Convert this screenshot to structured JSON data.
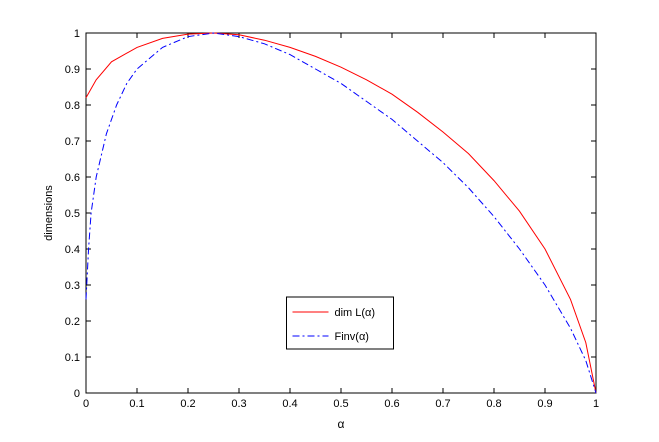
{
  "chart_data": {
    "type": "line",
    "x_label": "α",
    "y_label": "dimensions",
    "xlim": [
      0,
      1
    ],
    "ylim": [
      0,
      1
    ],
    "xticks": [
      0,
      0.1,
      0.2,
      0.3,
      0.4,
      0.5,
      0.6,
      0.7,
      0.8,
      0.9,
      1
    ],
    "yticks": [
      0,
      0.1,
      0.2,
      0.3,
      0.4,
      0.5,
      0.6,
      0.7,
      0.8,
      0.9,
      1
    ],
    "legend": "bottom-center",
    "series": [
      {
        "name": "dim L(α)",
        "color": "#ff0000",
        "dash": "solid",
        "x": [
          0,
          0.02,
          0.05,
          0.1,
          0.15,
          0.2,
          0.25,
          0.3,
          0.35,
          0.4,
          0.45,
          0.5,
          0.55,
          0.6,
          0.65,
          0.7,
          0.75,
          0.8,
          0.85,
          0.9,
          0.95,
          0.98,
          1
        ],
        "values": [
          0.82,
          0.87,
          0.92,
          0.96,
          0.985,
          0.997,
          1.0,
          0.995,
          0.98,
          0.96,
          0.935,
          0.905,
          0.87,
          0.83,
          0.78,
          0.725,
          0.665,
          0.59,
          0.505,
          0.4,
          0.26,
          0.14,
          0
        ]
      },
      {
        "name": "Finv(α)",
        "color": "#0000ff",
        "dash": "dashdot",
        "x": [
          0,
          0.005,
          0.01,
          0.02,
          0.04,
          0.06,
          0.08,
          0.1,
          0.15,
          0.2,
          0.25,
          0.3,
          0.35,
          0.4,
          0.45,
          0.5,
          0.55,
          0.6,
          0.65,
          0.7,
          0.75,
          0.8,
          0.85,
          0.9,
          0.95,
          0.98,
          1
        ],
        "values": [
          0.26,
          0.4,
          0.5,
          0.6,
          0.72,
          0.8,
          0.86,
          0.9,
          0.96,
          0.99,
          1.0,
          0.99,
          0.97,
          0.94,
          0.9,
          0.86,
          0.81,
          0.76,
          0.7,
          0.64,
          0.57,
          0.49,
          0.4,
          0.3,
          0.18,
          0.09,
          0
        ]
      }
    ]
  }
}
